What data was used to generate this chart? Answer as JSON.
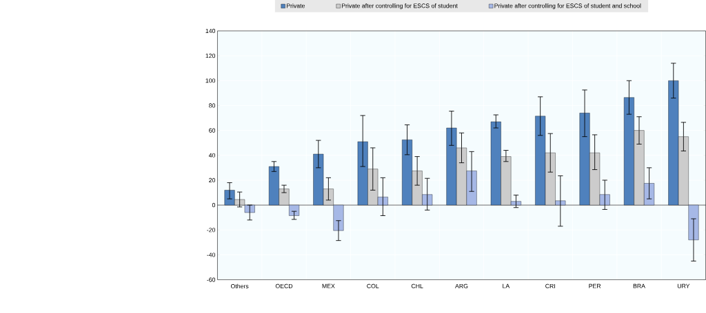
{
  "chart_data": {
    "type": "bar",
    "categories": [
      "Others",
      "OECD",
      "MEX",
      "COL",
      "CHL",
      "ARG",
      "LA",
      "CRI",
      "PER",
      "BRA",
      "URY"
    ],
    "series": [
      {
        "name": "Private",
        "color": "#4f81bd",
        "values": [
          12,
          31,
          41,
          51,
          52.5,
          62,
          67,
          71.5,
          74,
          86.5,
          100
        ],
        "errors": [
          [
            5,
            18
          ],
          [
            27,
            35
          ],
          [
            30,
            52
          ],
          [
            31,
            72
          ],
          [
            40.5,
            64.5
          ],
          [
            48,
            75.5
          ],
          [
            62,
            72.5
          ],
          [
            56,
            87
          ],
          [
            55,
            92.5
          ],
          [
            73,
            100
          ],
          [
            86,
            114
          ]
        ]
      },
      {
        "name": "Private after controlling for ESCS of student",
        "color": "#cccccc",
        "values": [
          4.5,
          13,
          13,
          29,
          27.5,
          46,
          39,
          42,
          42,
          60,
          55
        ],
        "errors": [
          [
            -1.5,
            10.5
          ],
          [
            10,
            16
          ],
          [
            4,
            22
          ],
          [
            12,
            46
          ],
          [
            16,
            39
          ],
          [
            34,
            58
          ],
          [
            35,
            44
          ],
          [
            26.5,
            57.5
          ],
          [
            28.5,
            56.5
          ],
          [
            49,
            71
          ],
          [
            43.5,
            66.5
          ]
        ]
      },
      {
        "name": "Private after controlling for ESCS of student and school",
        "color": "#a6b8e6",
        "values": [
          -6,
          -8.5,
          -20.5,
          6.5,
          8.5,
          27.5,
          3,
          3.5,
          8.5,
          17.5,
          -28
        ],
        "errors": [
          [
            -12,
            0
          ],
          [
            -11.5,
            -5
          ],
          [
            -28.5,
            -12.5
          ],
          [
            -8.5,
            22
          ],
          [
            -4,
            21.5
          ],
          [
            11,
            43
          ],
          [
            -2,
            8
          ],
          [
            -17,
            23.5
          ],
          [
            -3.5,
            20
          ],
          [
            5,
            30
          ],
          [
            -45,
            -11
          ]
        ]
      }
    ],
    "ylim": [
      -60,
      140
    ],
    "yticks": [
      -60,
      -40,
      -20,
      0,
      20,
      40,
      60,
      80,
      100,
      120,
      140
    ],
    "grid": true,
    "legend": "top"
  }
}
